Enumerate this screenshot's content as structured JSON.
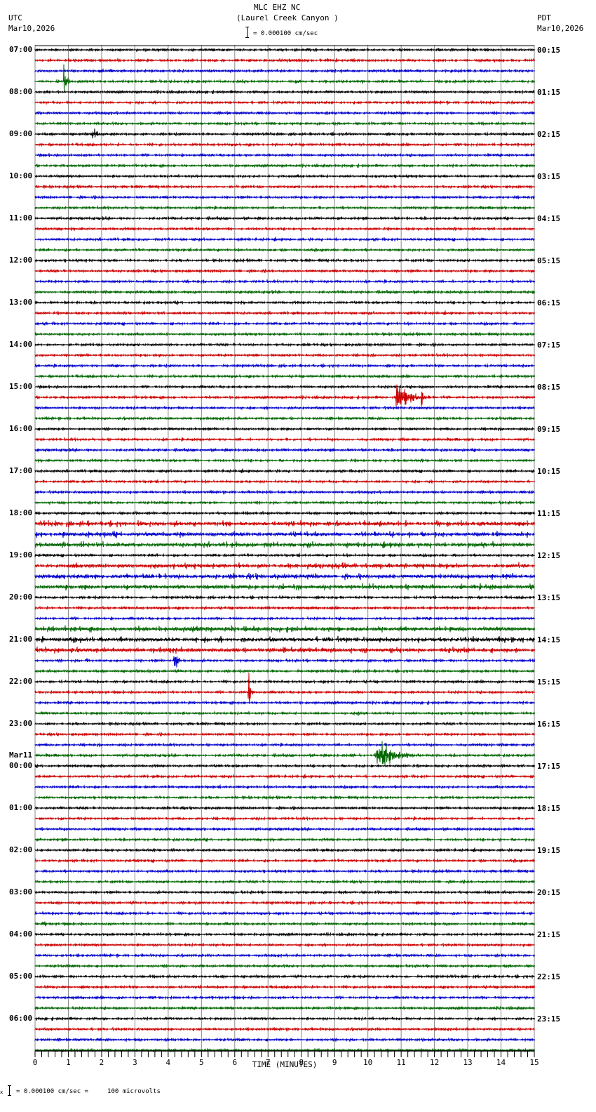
{
  "header": {
    "station": "MLC EHZ NC",
    "location": "(Laurel Creek Canyon )",
    "left_tz": "UTC",
    "left_date": "Mar10,2026",
    "right_tz": "PDT",
    "right_date": "Mar10,2026",
    "scale_text": "= 0.000100 cm/sec"
  },
  "footer": {
    "scale_text": "= 0.000100 cm/sec =     100 microvolts",
    "prefix": "x"
  },
  "chart_data": {
    "type": "line",
    "title": "MLC EHZ NC (Laurel Creek Canyon ) helicorder",
    "xlabel": "TIME (MINUTES)",
    "ylabel": "",
    "x_ticks": [
      "0",
      "1",
      "2",
      "3",
      "4",
      "5",
      "6",
      "7",
      "8",
      "9",
      "10",
      "11",
      "12",
      "13",
      "14",
      "15"
    ],
    "xlim": [
      0,
      15
    ],
    "traces_per_hour": 4,
    "trace_count": 96,
    "trace_colors": [
      "#000000",
      "#cc0000",
      "#0000cc",
      "#006600"
    ],
    "grid": true,
    "left_labels": [
      {
        "row": 0,
        "text": "07:00"
      },
      {
        "row": 4,
        "text": "08:00"
      },
      {
        "row": 8,
        "text": "09:00"
      },
      {
        "row": 12,
        "text": "10:00"
      },
      {
        "row": 16,
        "text": "11:00"
      },
      {
        "row": 20,
        "text": "12:00"
      },
      {
        "row": 24,
        "text": "13:00"
      },
      {
        "row": 28,
        "text": "14:00"
      },
      {
        "row": 32,
        "text": "15:00"
      },
      {
        "row": 36,
        "text": "16:00"
      },
      {
        "row": 40,
        "text": "17:00"
      },
      {
        "row": 44,
        "text": "18:00"
      },
      {
        "row": 48,
        "text": "19:00"
      },
      {
        "row": 52,
        "text": "20:00"
      },
      {
        "row": 56,
        "text": "21:00"
      },
      {
        "row": 60,
        "text": "22:00"
      },
      {
        "row": 64,
        "text": "23:00"
      },
      {
        "row": 68,
        "text": "00:00",
        "date": "Mar11"
      },
      {
        "row": 72,
        "text": "01:00"
      },
      {
        "row": 76,
        "text": "02:00"
      },
      {
        "row": 80,
        "text": "03:00"
      },
      {
        "row": 84,
        "text": "04:00"
      },
      {
        "row": 88,
        "text": "05:00"
      },
      {
        "row": 92,
        "text": "06:00"
      }
    ],
    "right_labels": [
      {
        "row": 0,
        "text": "00:15"
      },
      {
        "row": 4,
        "text": "01:15"
      },
      {
        "row": 8,
        "text": "02:15"
      },
      {
        "row": 12,
        "text": "03:15"
      },
      {
        "row": 16,
        "text": "04:15"
      },
      {
        "row": 20,
        "text": "05:15"
      },
      {
        "row": 24,
        "text": "06:15"
      },
      {
        "row": 28,
        "text": "07:15"
      },
      {
        "row": 32,
        "text": "08:15"
      },
      {
        "row": 36,
        "text": "09:15"
      },
      {
        "row": 40,
        "text": "10:15"
      },
      {
        "row": 44,
        "text": "11:15"
      },
      {
        "row": 48,
        "text": "12:15"
      },
      {
        "row": 52,
        "text": "13:15"
      },
      {
        "row": 56,
        "text": "14:15"
      },
      {
        "row": 60,
        "text": "15:15"
      },
      {
        "row": 64,
        "text": "16:15"
      },
      {
        "row": 68,
        "text": "17:15"
      },
      {
        "row": 72,
        "text": "18:15"
      },
      {
        "row": 76,
        "text": "19:15"
      },
      {
        "row": 80,
        "text": "20:15"
      },
      {
        "row": 84,
        "text": "21:15"
      },
      {
        "row": 88,
        "text": "22:15"
      },
      {
        "row": 92,
        "text": "23:15"
      }
    ],
    "noisy_rows": [
      45,
      46,
      47,
      49,
      50,
      51,
      55,
      56,
      57
    ],
    "events": [
      {
        "row": 3,
        "minute": 0.85,
        "duration": 0.3,
        "amp": 55,
        "note": "spike"
      },
      {
        "row": 2,
        "minute": 4.3,
        "duration": 0.05,
        "amp": 6
      },
      {
        "row": 2,
        "minute": 5.0,
        "duration": 0.05,
        "amp": 5
      },
      {
        "row": 7,
        "minute": 1.9,
        "duration": 0.1,
        "amp": 18
      },
      {
        "row": 8,
        "minute": 1.7,
        "duration": 0.8,
        "amp": 14
      },
      {
        "row": 8,
        "minute": 9.3,
        "duration": 0.6,
        "amp": 12
      },
      {
        "row": 12,
        "minute": 4.8,
        "duration": 0.15,
        "amp": 5
      },
      {
        "row": 30,
        "minute": 2.4,
        "duration": 0.4,
        "amp": 6
      },
      {
        "row": 33,
        "minute": 10.8,
        "duration": 1.8,
        "amp": 32
      },
      {
        "row": 33,
        "minute": 11.6,
        "duration": 0.2,
        "amp": 45
      },
      {
        "row": 36,
        "minute": 5.0,
        "duration": 0.1,
        "amp": 5
      },
      {
        "row": 41,
        "minute": 6.3,
        "duration": 0.2,
        "amp": 5
      },
      {
        "row": 42,
        "minute": 7.0,
        "duration": 0.8,
        "amp": 4
      },
      {
        "row": 46,
        "minute": 1.0,
        "duration": 0.7,
        "amp": 9
      },
      {
        "row": 49,
        "minute": 8.0,
        "duration": 0.8,
        "amp": 5
      },
      {
        "row": 51,
        "minute": 14.5,
        "duration": 0.2,
        "amp": 6
      },
      {
        "row": 56,
        "minute": 0.2,
        "duration": 0.2,
        "amp": 7
      },
      {
        "row": 56,
        "minute": 1.7,
        "duration": 0.2,
        "amp": 7
      },
      {
        "row": 56,
        "minute": 3.7,
        "duration": 0.1,
        "amp": 14
      },
      {
        "row": 56,
        "minute": 5.65,
        "duration": 0.1,
        "amp": 9
      },
      {
        "row": 58,
        "minute": 1.5,
        "duration": 0.5,
        "amp": 8
      },
      {
        "row": 58,
        "minute": 4.15,
        "duration": 0.4,
        "amp": 40
      },
      {
        "row": 61,
        "minute": 6.4,
        "duration": 0.25,
        "amp": 50
      },
      {
        "row": 63,
        "minute": 9.7,
        "duration": 0.4,
        "amp": 8
      },
      {
        "row": 67,
        "minute": 9.5,
        "duration": 0.4,
        "amp": 6
      },
      {
        "row": 67,
        "minute": 10.2,
        "duration": 1.8,
        "amp": 38
      },
      {
        "row": 80,
        "minute": 3.2,
        "duration": 0.4,
        "amp": 5
      },
      {
        "row": 83,
        "minute": 0.2,
        "duration": 0.3,
        "amp": 18
      },
      {
        "row": 94,
        "minute": 11.6,
        "duration": 0.3,
        "amp": 6
      }
    ]
  }
}
